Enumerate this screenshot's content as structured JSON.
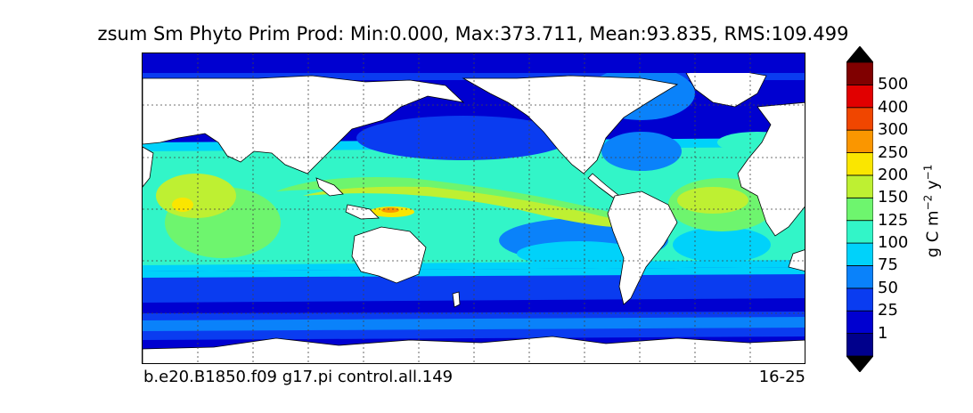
{
  "title": "zsum Sm Phyto Prim Prod: Min:0.000, Max:373.711, Mean:93.835, RMS:109.499",
  "case_label": "b.e20.B1850.f09 g17.pi control.all.149",
  "years_label": "16-25",
  "colorbar": {
    "label_prefix": "g C m",
    "label_exp1": "−2",
    "label_mid": " y",
    "label_exp2": "−1",
    "levels": [
      "1",
      "25",
      "50",
      "75",
      "100",
      "125",
      "150",
      "200",
      "250",
      "300",
      "400",
      "500"
    ],
    "colors": [
      "#00008c",
      "#0000d0",
      "#0a3cf0",
      "#0a82fa",
      "#00d2fa",
      "#32f5c8",
      "#6ef56e",
      "#bef032",
      "#fae600",
      "#fa9600",
      "#f04600",
      "#e10000",
      "#800000"
    ]
  },
  "map": {
    "projection": "cylindrical equidistant",
    "land_color": "#ffffff",
    "gridlines": true
  }
}
